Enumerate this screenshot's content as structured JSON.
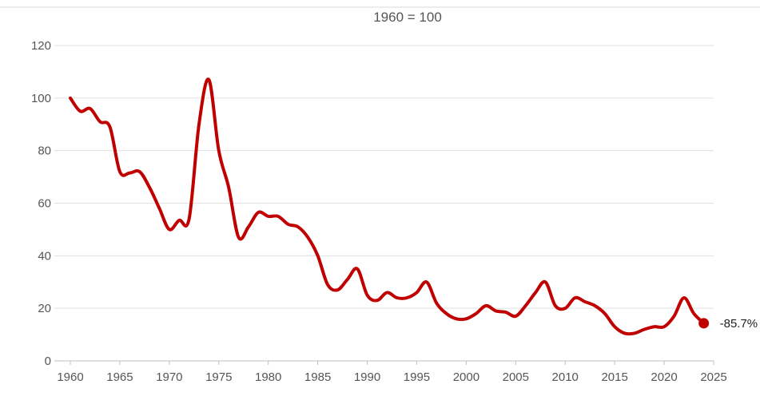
{
  "chart_data": {
    "type": "line",
    "title": "",
    "subtitle": "1960 = 100",
    "xlabel": "",
    "ylabel": "",
    "xlim": [
      1960,
      2025
    ],
    "ylim": [
      0,
      120
    ],
    "x_ticks": [
      "1960",
      "1965",
      "1970",
      "1975",
      "1980",
      "1985",
      "1990",
      "1995",
      "2000",
      "2005",
      "2010",
      "2015",
      "2020",
      "2025"
    ],
    "y_ticks": [
      "0",
      "20",
      "40",
      "60",
      "80",
      "100",
      "120"
    ],
    "grid": "horizontal",
    "legend": "none",
    "series": [
      {
        "color": "#c00000",
        "x": [
          1960,
          1961,
          1962,
          1963,
          1964,
          1965,
          1966,
          1967,
          1968,
          1969,
          1970,
          1971,
          1972,
          1973,
          1974,
          1975,
          1976,
          1977,
          1978,
          1979,
          1980,
          1981,
          1982,
          1983,
          1984,
          1985,
          1986,
          1987,
          1988,
          1989,
          1990,
          1991,
          1992,
          1993,
          1994,
          1995,
          1996,
          1997,
          1998,
          1999,
          2000,
          2001,
          2002,
          2003,
          2004,
          2005,
          2006,
          2007,
          2008,
          2009,
          2010,
          2011,
          2012,
          2013,
          2014,
          2015,
          2016,
          2017,
          2018,
          2019,
          2020,
          2021,
          2022,
          2023,
          2024
        ],
        "values": [
          100,
          95,
          96,
          91,
          89,
          72,
          71.5,
          72,
          66,
          58,
          50,
          53.5,
          54,
          90,
          107,
          80,
          66,
          47,
          51,
          56.5,
          55,
          55,
          52,
          51,
          47,
          40,
          29,
          27,
          31,
          35,
          25,
          23,
          26,
          24,
          24,
          26,
          30,
          22,
          18,
          16,
          16,
          18,
          21,
          19,
          18.5,
          17,
          21,
          26,
          30,
          21,
          20,
          24,
          22.5,
          21,
          18,
          13,
          10.5,
          10.5,
          12,
          13,
          13,
          17,
          24,
          18,
          14.3
        ]
      }
    ],
    "annotations": [
      {
        "x": 2024,
        "y": 14.3,
        "text": "-85.7%"
      }
    ]
  }
}
